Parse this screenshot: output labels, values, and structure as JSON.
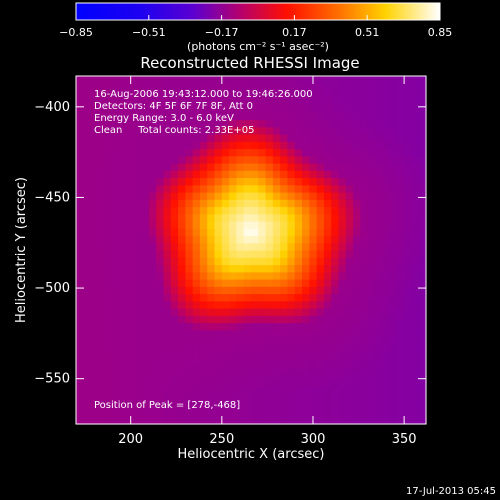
{
  "chart_data": {
    "type": "heatmap",
    "title": "Reconstructed RHESSI Image",
    "xlabel": "Heliocentric X (arcsec)",
    "ylabel": "Heliocentric Y (arcsec)",
    "xlim": [
      170,
      362
    ],
    "ylim": [
      -575,
      -383
    ],
    "x_ticks": [
      200,
      250,
      300,
      350
    ],
    "y_ticks": [
      -400,
      -450,
      -500,
      -550
    ],
    "colorbar": {
      "ticks": [
        -0.85,
        -0.51,
        -0.17,
        0.17,
        0.51,
        0.85
      ],
      "tick_labels": [
        "−0.85",
        "−0.51",
        "−0.17",
        "0.17",
        "0.51",
        "0.85"
      ],
      "range": [
        -0.85,
        0.85
      ],
      "unit_label": "(photons cm⁻² s⁻¹ asec⁻²)"
    },
    "annotations": [
      "16-Aug-2006 19:43:12.000 to 19:46:26.000",
      "Detectors: 4F 5F 6F 7F 8F, Att 0",
      "Energy Range: 3.0 - 6.0 keV",
      "Clean     Total counts: 2.33E+05"
    ],
    "peak": {
      "label": "Position of Peak = [278,-468]",
      "x": 278,
      "y": -468,
      "value": 0.85
    },
    "source": {
      "center_x": 266,
      "center_y": -468,
      "core_radius": 20,
      "outer_radius": 58,
      "background_value": -0.14
    },
    "timestamp": "17-Jul-2013 05:45",
    "colors": {
      "background": "#000000",
      "text": "#ffffff"
    }
  }
}
